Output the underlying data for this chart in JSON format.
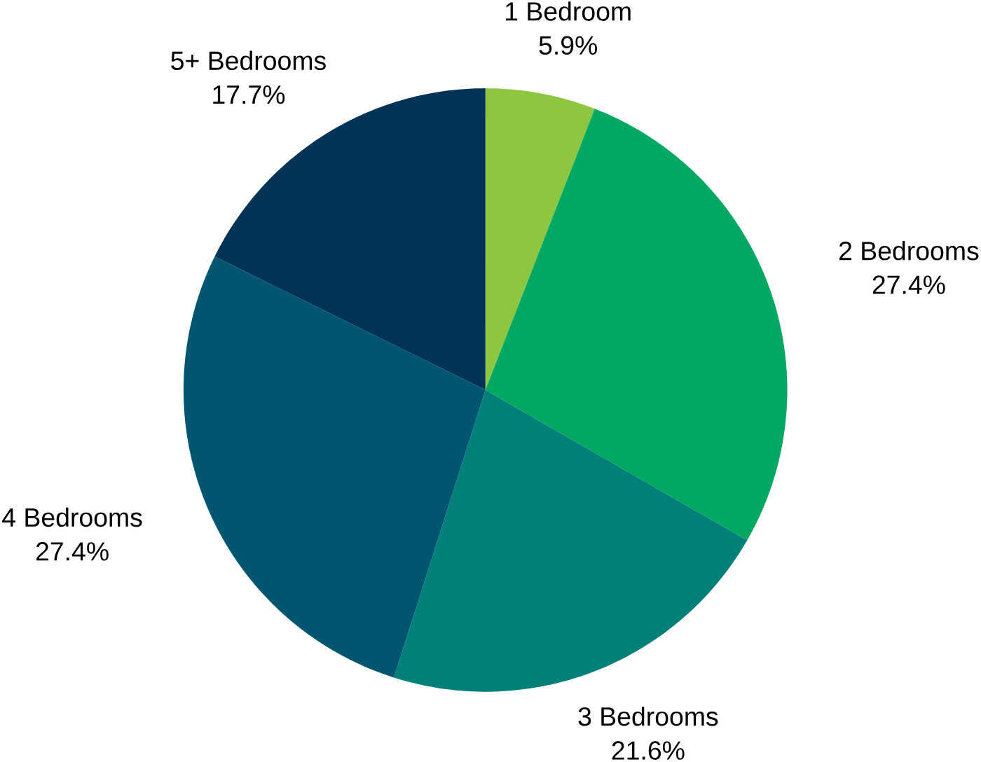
{
  "chart_data": {
    "type": "pie",
    "categories": [
      "1 Bedroom",
      "2 Bedrooms",
      "3 Bedrooms",
      "4 Bedrooms",
      "5+ Bedrooms"
    ],
    "values": [
      5.9,
      27.4,
      21.6,
      27.4,
      17.7
    ],
    "colors": [
      "#8dc63f",
      "#00a862",
      "#008078",
      "#005670",
      "#003356"
    ],
    "value_labels": [
      "5.9%",
      "27.4%",
      "21.6%",
      "27.4%",
      "17.7%"
    ]
  }
}
